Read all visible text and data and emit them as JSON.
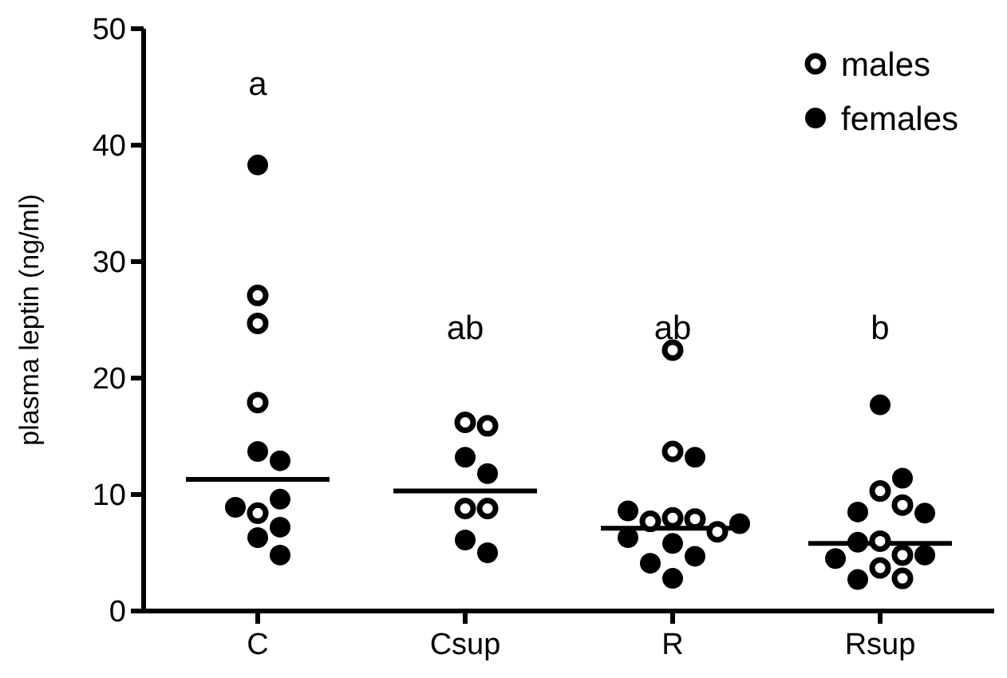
{
  "chart_data": {
    "type": "scatter",
    "ylabel": "plasma leptin (ng/ml)",
    "categories": [
      "C",
      "Csup",
      "R",
      "Rsup"
    ],
    "ylim": [
      0,
      50
    ],
    "yticks": [
      0,
      10,
      20,
      30,
      40,
      50
    ],
    "grid": false,
    "legend": "top right",
    "marker": "circle",
    "series": [
      {
        "name": "males",
        "type": "scatter",
        "color": "#ffffff",
        "x": [
          "C",
          "C",
          "C",
          "C",
          "Csup",
          "Csup",
          "Csup",
          "Csup",
          "R",
          "R",
          "R",
          "R",
          "R",
          "R",
          "Rsup",
          "Rsup",
          "Rsup",
          "Rsup",
          "Rsup",
          "Rsup"
        ],
        "values": [
          27.1,
          24.7,
          17.9,
          8.4,
          16.2,
          15.9,
          8.8,
          8.8,
          22.4,
          13.7,
          8.0,
          7.9,
          7.7,
          6.8,
          10.3,
          9.1,
          6.0,
          4.8,
          3.7,
          2.8
        ]
      },
      {
        "name": "females",
        "type": "scatter",
        "color": "#000000",
        "x": [
          "C",
          "C",
          "C",
          "C",
          "C",
          "C",
          "C",
          "C",
          "Csup",
          "Csup",
          "Csup",
          "Csup",
          "R",
          "R",
          "R",
          "R",
          "R",
          "R",
          "R",
          "R",
          "Rsup",
          "Rsup",
          "Rsup",
          "Rsup",
          "Rsup",
          "Rsup",
          "Rsup",
          "Rsup"
        ],
        "values": [
          38.3,
          13.7,
          12.9,
          9.6,
          8.9,
          7.2,
          6.3,
          4.8,
          13.2,
          11.8,
          6.1,
          5.0,
          13.2,
          8.6,
          7.5,
          6.3,
          5.8,
          4.7,
          4.1,
          2.8,
          17.7,
          11.4,
          8.5,
          8.4,
          5.9,
          4.8,
          4.5,
          2.7
        ]
      },
      {
        "type": "box",
        "color": "#000000",
        "boxes": [
          {
            "low": 11.3,
            "q1": 11.3,
            "median": 11.3,
            "q3": 11.3,
            "high": 11.3
          },
          {
            "low": 10.3,
            "q1": 10.3,
            "median": 10.3,
            "q3": 10.3,
            "high": 10.3
          },
          {
            "low": 7.1,
            "q1": 7.1,
            "median": 7.1,
            "q3": 7.1,
            "high": 7.1
          },
          {
            "low": 5.8,
            "q1": 5.8,
            "median": 5.8,
            "q3": 5.8,
            "high": 5.8
          }
        ]
      }
    ],
    "annotations": [
      "a",
      "ab",
      "ab",
      "b"
    ]
  }
}
